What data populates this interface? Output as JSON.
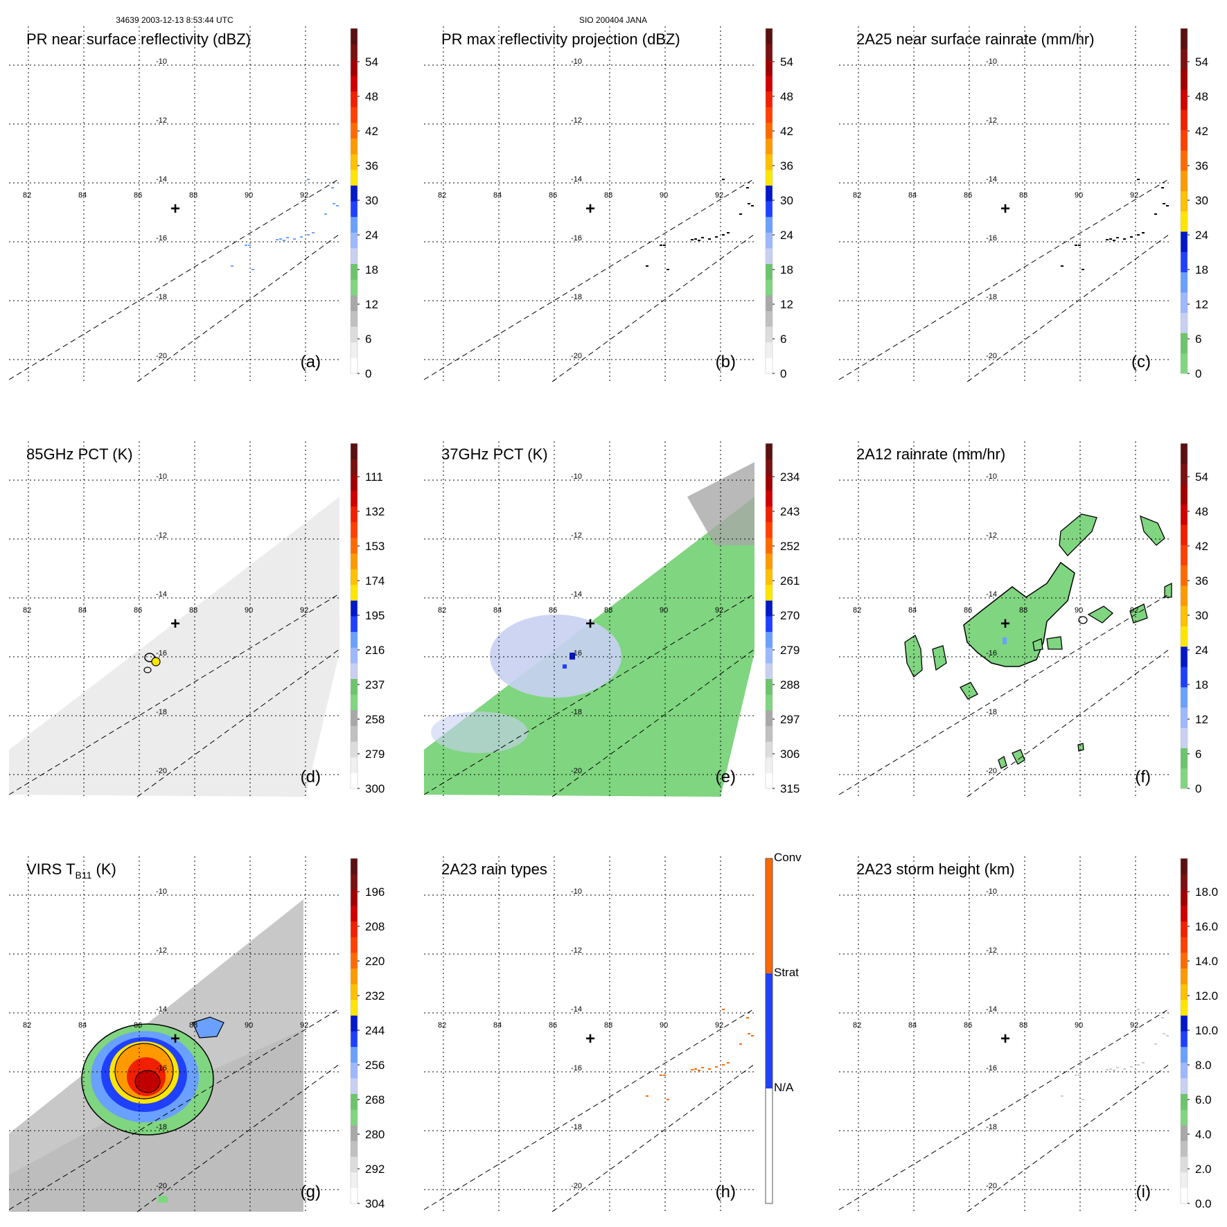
{
  "header": {
    "left": "34639 2003-12-13 8:53:44 UTC",
    "center": "SIO 200404 JANA"
  },
  "map": {
    "lon_ticks": [
      "82",
      "84",
      "86",
      "88",
      "90",
      "92"
    ],
    "lat_ticks": [
      "-10",
      "-12",
      "-14",
      "-16",
      "-18",
      "-20"
    ],
    "center_marker": "+"
  },
  "colors": {
    "gray_light": "#f2f2f2",
    "gray_mid": "#c8c8c8",
    "gray_dark": "#9a9a9a",
    "green": "#80d580",
    "lightblue": "#c8d0f2",
    "blue_mid": "#6aa0ff",
    "blue": "#2040ff",
    "blue_dark": "#0018c8",
    "yellow": "#ffe600",
    "orange": "#ff9900",
    "orange_red": "#ff6a00",
    "red": "#f02000",
    "dark_red": "#c00000",
    "maroon": "#7a1010"
  },
  "chart_data": [
    {
      "id": "a",
      "type": "heatmap",
      "title": "PR near surface reflectivity (dBZ)",
      "label": "(a)",
      "colorbar": {
        "ticks": [
          "54",
          "48",
          "42",
          "36",
          "30",
          "24",
          "18",
          "12",
          "6",
          "0"
        ],
        "range": [
          0,
          60
        ]
      }
    },
    {
      "id": "b",
      "type": "heatmap",
      "title": "PR max reflectivity projection (dBZ)",
      "label": "(b)",
      "colorbar": {
        "ticks": [
          "54",
          "48",
          "42",
          "36",
          "30",
          "24",
          "18",
          "12",
          "6",
          "0"
        ],
        "range": [
          0,
          60
        ]
      }
    },
    {
      "id": "c",
      "type": "heatmap",
      "title": "2A25 near surface rainrate (mm/hr)",
      "label": "(c)",
      "colorbar": {
        "ticks": [
          "54",
          "48",
          "42",
          "36",
          "30",
          "24",
          "18",
          "12",
          "6",
          "0"
        ],
        "range": [
          0,
          60
        ]
      }
    },
    {
      "id": "d",
      "type": "heatmap",
      "title": "85GHz PCT (K)",
      "label": "(d)",
      "colorbar": {
        "ticks": [
          "111",
          "132",
          "153",
          "174",
          "195",
          "216",
          "237",
          "258",
          "279",
          "300"
        ],
        "range": [
          300,
          90
        ]
      }
    },
    {
      "id": "e",
      "type": "heatmap",
      "title": "37GHz PCT (K)",
      "label": "(e)",
      "colorbar": {
        "ticks": [
          "234",
          "243",
          "252",
          "261",
          "270",
          "279",
          "288",
          "297",
          "306",
          "315"
        ],
        "range": [
          315,
          225
        ]
      }
    },
    {
      "id": "f",
      "type": "heatmap",
      "title": "2A12 rainrate (mm/hr)",
      "label": "(f)",
      "colorbar": {
        "ticks": [
          "54",
          "48",
          "42",
          "36",
          "30",
          "24",
          "18",
          "12",
          "6",
          "0"
        ],
        "range": [
          0,
          60
        ]
      }
    },
    {
      "id": "g",
      "type": "heatmap",
      "title": "VIRS T",
      "title_sub": "B11",
      "title_unit": "(K)",
      "label": "(g)",
      "colorbar": {
        "ticks": [
          "196",
          "208",
          "220",
          "232",
          "244",
          "256",
          "268",
          "280",
          "292",
          "304"
        ],
        "range": [
          304,
          184
        ]
      }
    },
    {
      "id": "h",
      "type": "heatmap",
      "title": "2A23 rain types",
      "label": "(h)",
      "colorbar": {
        "categories": [
          "Conv",
          "Strat",
          "N/A"
        ]
      }
    },
    {
      "id": "i",
      "type": "heatmap",
      "title": "2A23 storm height (km)",
      "label": "(i)",
      "colorbar": {
        "ticks": [
          "18.0",
          "16.0",
          "14.0",
          "12.0",
          "10.0",
          "8.0",
          "6.0",
          "4.0",
          "2.0",
          "0.0"
        ],
        "range": [
          0,
          20
        ]
      }
    }
  ]
}
